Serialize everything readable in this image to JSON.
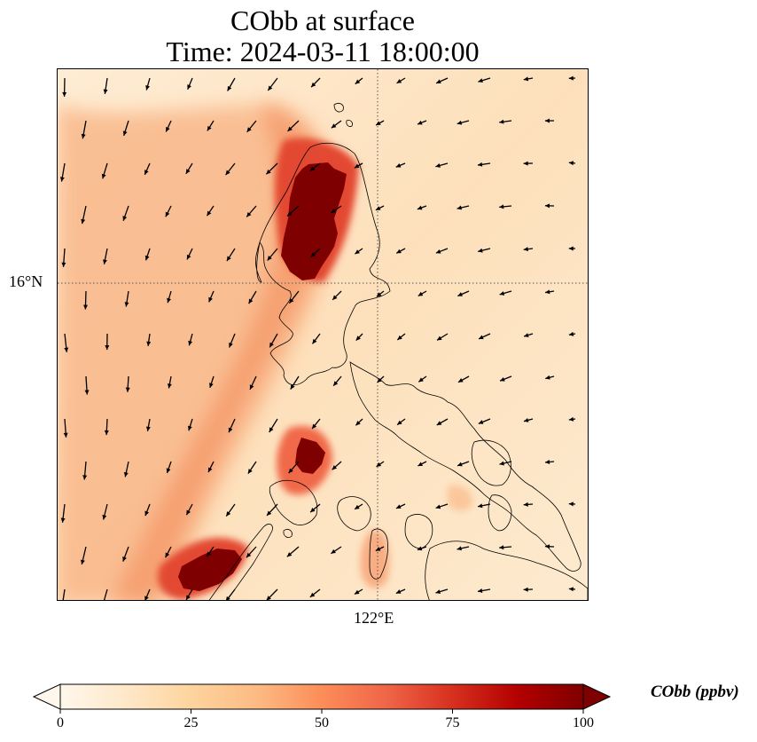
{
  "title": {
    "line1": "CObb at surface",
    "line2": "Time: 2024-03-11 18:00:00"
  },
  "map": {
    "lat_label": "16°N",
    "lon_label": "122°E",
    "gridlines": "dotted",
    "colormap": "OrRd",
    "plume_colors": {
      "background": "#fde7c9",
      "low": "#fdd49e",
      "mid": "#f7a072",
      "high": "#e34a33",
      "max": "#7f0000"
    },
    "vector_field": "wind-arrows",
    "coastline_color": "#000000"
  },
  "colorbar": {
    "label": "CObb (ppbv)",
    "ticks": [
      "0",
      "25",
      "50",
      "75",
      "100"
    ],
    "min": 0,
    "max": 100,
    "extend": "both",
    "stops": [
      "#fff7ec",
      "#fee8c8",
      "#fdd49e",
      "#fdbb84",
      "#fc8d59",
      "#ef6548",
      "#d7301f",
      "#b30000",
      "#7f0000"
    ]
  }
}
